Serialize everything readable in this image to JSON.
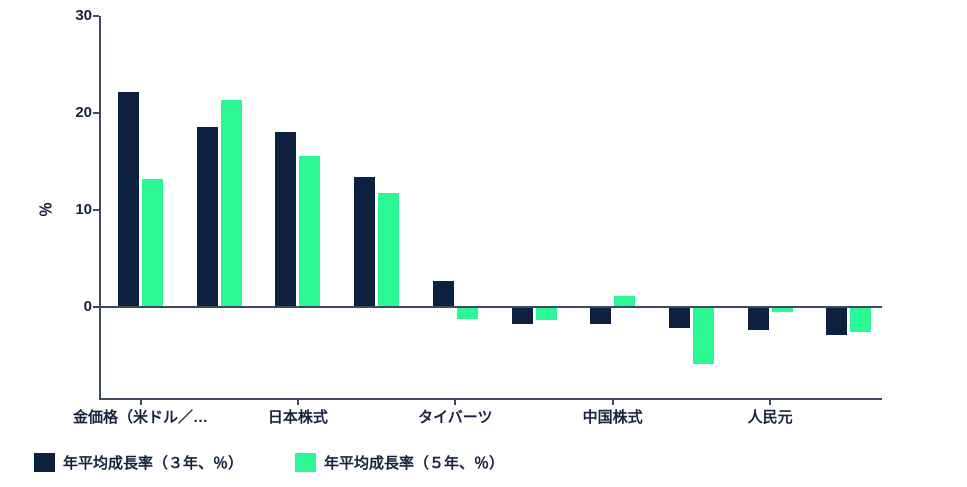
{
  "chart_data": {
    "type": "bar",
    "title": "",
    "ylabel": "％",
    "xlabel": "",
    "yticks": [
      30,
      20,
      10,
      0
    ],
    "ylim": [
      -9.5,
      30
    ],
    "grid": false,
    "legend_position": "bottom",
    "axis_color": "#3d4a5f",
    "text_color": "#16233f",
    "categories": [
      "金価格（米ドル／…",
      "",
      "日本株式",
      "",
      "タイバーツ",
      "",
      "中国株式",
      "",
      "人民元",
      ""
    ],
    "labeled_category_indices": [
      0,
      2,
      4,
      6,
      8
    ],
    "series": [
      {
        "name": "年平均成長率（３年、％）",
        "color": "#0e2040",
        "values": [
          22.1,
          18.5,
          17.9,
          13.3,
          2.6,
          -1.6,
          -1.6,
          -2.1,
          -2.3,
          -2.8
        ]
      },
      {
        "name": "年平均成長率（５年、％）",
        "color": "#2bf795",
        "values": [
          13.1,
          21.2,
          15.5,
          11.7,
          -1.1,
          -1.2,
          1.0,
          -5.8,
          -0.4,
          -2.5
        ]
      }
    ]
  }
}
